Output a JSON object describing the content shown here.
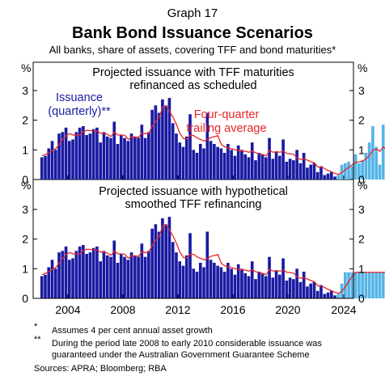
{
  "header": {
    "graph_label": "Graph 17",
    "title": "Bank Bond Issuance Scenarios",
    "subtitle": "All banks, share of assets, covering TFF and bond maturities*"
  },
  "colors": {
    "history_bar": "#1a1aa3",
    "projection_bar": "#55b4e6",
    "trailing_line": "#e8262a"
  },
  "chart_data": [
    {
      "type": "bar",
      "panel_title_lines": [
        "Projected issuance with TFF maturities",
        "refinanced as scheduled"
      ],
      "y_unit": "%",
      "ylim": [
        0,
        3
      ],
      "yticks": [
        0,
        1,
        2,
        3
      ],
      "x_tick_labels": [
        "2004",
        "2008",
        "2012",
        "2016",
        "2020",
        "2024"
      ],
      "annotations": [
        {
          "label_lines": [
            "Issuance",
            "(quarterly)**"
          ],
          "color": "#1a1aa3"
        },
        {
          "label_lines": [
            "Four-quarter",
            "trailing average"
          ],
          "color": "#e8262a"
        }
      ],
      "first_quarter": "2002-Q1",
      "series": [
        {
          "kind": "bar",
          "values": [
            0.75,
            0.8,
            1.05,
            1.3,
            1.0,
            1.55,
            1.6,
            1.75,
            1.3,
            1.35,
            1.6,
            1.75,
            1.8,
            1.5,
            1.55,
            1.7,
            1.75,
            1.25,
            1.6,
            1.45,
            1.4,
            1.95,
            1.2,
            1.5,
            1.4,
            1.3,
            1.55,
            1.45,
            1.4,
            1.85,
            1.4,
            1.6,
            2.35,
            2.5,
            2.25,
            2.7,
            2.5,
            2.75,
            1.9,
            1.55,
            1.25,
            1.1,
            1.45,
            2.2,
            1.0,
            0.9,
            1.2,
            1.05,
            2.25,
            1.3,
            1.2,
            1.1,
            1.05,
            0.9,
            1.2,
            1.0,
            0.8,
            1.15,
            1.0,
            0.85,
            0.75,
            1.25,
            0.65,
            0.9,
            0.85,
            0.75,
            1.4,
            0.7,
            0.95,
            0.8,
            1.35,
            0.6,
            0.7,
            0.65,
            1.0,
            0.55,
            0.9,
            0.4,
            0.5,
            0.55,
            0.25,
            0.45,
            0.15,
            0.2,
            0.25,
            0.1,
            0.15,
            0.5,
            0.55,
            0.6,
            0.45,
            0.85,
            0.55,
            0.65,
            0.9,
            1.25,
            1.8,
            1.1,
            0.5,
            1.85,
            0.6,
            2.35
          ]
        },
        {
          "kind": "line",
          "values": [
            0.8,
            0.85,
            0.9,
            0.98,
            1.04,
            1.2,
            1.36,
            1.48,
            1.55,
            1.5,
            1.5,
            1.5,
            1.62,
            1.66,
            1.65,
            1.64,
            1.63,
            1.56,
            1.57,
            1.52,
            1.45,
            1.6,
            1.5,
            1.5,
            1.49,
            1.35,
            1.44,
            1.43,
            1.42,
            1.58,
            1.54,
            1.57,
            1.8,
            1.97,
            2.1,
            2.45,
            2.48,
            2.3,
            2.1,
            1.85,
            1.55,
            1.38,
            1.37,
            1.5,
            1.48,
            1.4,
            1.35,
            1.3,
            1.35,
            1.42,
            1.45,
            1.48,
            1.18,
            1.1,
            1.06,
            1.04,
            1.0,
            0.98,
            0.97,
            0.95,
            0.92,
            0.96,
            0.9,
            0.87,
            0.84,
            0.8,
            0.98,
            0.92,
            0.93,
            0.92,
            0.96,
            0.88,
            0.87,
            0.85,
            0.72,
            0.68,
            0.7,
            0.65,
            0.6,
            0.56,
            0.42,
            0.42,
            0.37,
            0.3,
            0.26,
            0.2,
            0.17,
            0.24,
            0.33,
            0.42,
            0.5,
            0.58,
            0.6,
            0.62,
            0.7,
            0.82,
            1.0,
            1.03,
            0.95,
            1.1,
            1.0,
            1.3
          ]
        }
      ]
    },
    {
      "type": "bar",
      "panel_title_lines": [
        "Projected issuance with hypothetical",
        "smoothed TFF refinancing"
      ],
      "y_unit": "%",
      "ylim": [
        0,
        3
      ],
      "yticks": [
        0,
        1,
        2,
        3
      ],
      "x_tick_labels": [
        "2004",
        "2008",
        "2012",
        "2016",
        "2020",
        "2024"
      ],
      "first_quarter": "2002-Q1",
      "series": [
        {
          "kind": "bar",
          "values": [
            0.75,
            0.8,
            1.05,
            1.3,
            1.0,
            1.55,
            1.6,
            1.75,
            1.3,
            1.35,
            1.6,
            1.75,
            1.8,
            1.5,
            1.55,
            1.7,
            1.75,
            1.25,
            1.6,
            1.45,
            1.4,
            1.95,
            1.2,
            1.5,
            1.4,
            1.3,
            1.55,
            1.45,
            1.4,
            1.85,
            1.4,
            1.6,
            2.35,
            2.5,
            2.25,
            2.7,
            2.5,
            2.75,
            1.9,
            1.55,
            1.25,
            1.1,
            1.45,
            2.2,
            1.0,
            0.9,
            1.2,
            1.05,
            2.25,
            1.3,
            1.2,
            1.1,
            1.05,
            0.9,
            1.2,
            1.0,
            0.8,
            1.15,
            1.0,
            0.85,
            0.75,
            1.25,
            0.65,
            0.9,
            0.85,
            0.75,
            1.4,
            0.7,
            0.95,
            0.8,
            1.35,
            0.6,
            0.7,
            0.65,
            1.0,
            0.55,
            0.9,
            0.4,
            0.5,
            0.55,
            0.25,
            0.45,
            0.15,
            0.2,
            0.25,
            0.1,
            0.15,
            0.5,
            0.88,
            0.88,
            0.88,
            0.88,
            0.88,
            0.88,
            0.88,
            0.88,
            0.88,
            0.88,
            0.88,
            0.88,
            0.88,
            0.88
          ]
        },
        {
          "kind": "line",
          "values": [
            0.8,
            0.85,
            0.9,
            0.98,
            1.04,
            1.2,
            1.36,
            1.48,
            1.55,
            1.5,
            1.5,
            1.5,
            1.62,
            1.66,
            1.65,
            1.64,
            1.63,
            1.56,
            1.57,
            1.52,
            1.45,
            1.6,
            1.5,
            1.5,
            1.49,
            1.35,
            1.44,
            1.43,
            1.42,
            1.58,
            1.54,
            1.57,
            1.8,
            1.97,
            2.1,
            2.45,
            2.48,
            2.3,
            2.1,
            1.85,
            1.55,
            1.38,
            1.37,
            1.5,
            1.48,
            1.4,
            1.35,
            1.3,
            1.35,
            1.42,
            1.45,
            1.48,
            1.18,
            1.1,
            1.06,
            1.04,
            1.0,
            0.98,
            0.97,
            0.95,
            0.92,
            0.96,
            0.9,
            0.87,
            0.84,
            0.8,
            0.98,
            0.92,
            0.93,
            0.92,
            0.96,
            0.88,
            0.87,
            0.85,
            0.72,
            0.68,
            0.7,
            0.65,
            0.6,
            0.56,
            0.42,
            0.42,
            0.37,
            0.3,
            0.26,
            0.2,
            0.17,
            0.24,
            0.4,
            0.58,
            0.75,
            0.88,
            0.88,
            0.88,
            0.88,
            0.88,
            0.88,
            0.88,
            0.88,
            0.88,
            0.88,
            0.88
          ]
        }
      ]
    }
  ],
  "footnotes": [
    {
      "mark": "*",
      "text": "Assumes 4 per cent annual asset growth"
    },
    {
      "mark": "**",
      "text_lines": [
        "During the period late 2008 to early 2010 considerable issuance was",
        "guaranteed under the Australian Government Guarantee Scheme"
      ]
    }
  ],
  "sources": "Sources: APRA; Bloomberg; RBA"
}
